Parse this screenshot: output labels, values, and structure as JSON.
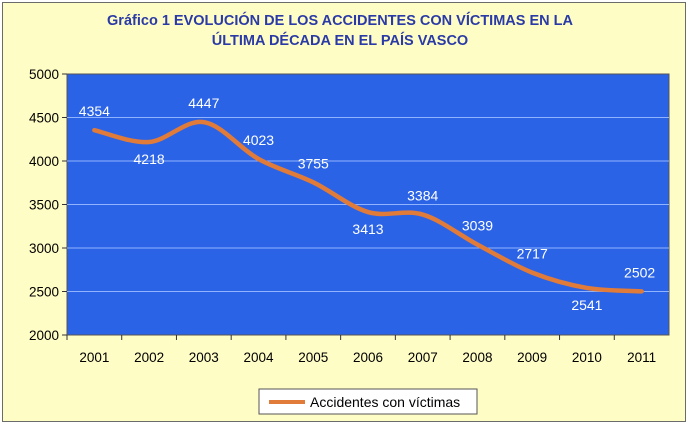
{
  "chart_data": {
    "type": "line",
    "title_lines": [
      "Gráfico 1  EVOLUCIÓN DE LOS ACCIDENTES CON VÍCTIMAS EN LA",
      "ÚLTIMA DÉCADA EN EL PAÍS VASCO"
    ],
    "xlabel": "",
    "ylabel": "",
    "categories": [
      "2001",
      "2002",
      "2003",
      "2004",
      "2005",
      "2006",
      "2007",
      "2008",
      "2009",
      "2010",
      "2011"
    ],
    "series": [
      {
        "name": "Accidentes con víctimas",
        "values": [
          4354,
          4218,
          4447,
          4023,
          3755,
          3413,
          3384,
          3039,
          2717,
          2541,
          2502
        ],
        "color": "#e07b39"
      }
    ],
    "ylim": [
      2000,
      5000
    ],
    "yticks": [
      2000,
      2500,
      3000,
      3500,
      4000,
      4500,
      5000
    ],
    "grid": true,
    "legend_position": "bottom",
    "plot_background": "#2b63e6",
    "frame_background": "#fffdc6"
  }
}
